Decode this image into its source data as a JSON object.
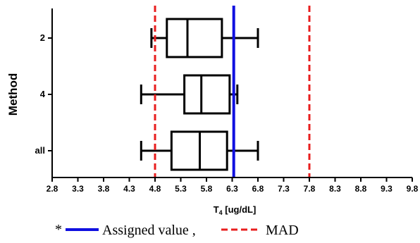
{
  "chart_data": {
    "type": "box",
    "orientation": "horizontal",
    "xlabel_main": "T",
    "xlabel_sub": "4",
    "xlabel_units": " [ug/dL]",
    "ylabel": "Method",
    "xlim": [
      2.8,
      9.8
    ],
    "x_ticks": [
      "2.8",
      "3.3",
      "3.8",
      "4.3",
      "4.8",
      "5.3",
      "5.8",
      "6.3",
      "6.8",
      "7.3",
      "7.8",
      "8.3",
      "8.8",
      "9.3",
      "9.8"
    ],
    "categories": [
      "2",
      "4",
      "all"
    ],
    "boxes": [
      {
        "name": "2",
        "min": 4.73,
        "q1": 5.03,
        "median": 5.43,
        "q3": 6.1,
        "max": 6.8
      },
      {
        "name": "4",
        "min": 4.53,
        "q1": 5.37,
        "median": 5.7,
        "q3": 6.25,
        "max": 6.4
      },
      {
        "name": "all",
        "min": 4.53,
        "q1": 5.12,
        "median": 5.67,
        "q3": 6.2,
        "max": 6.8
      }
    ],
    "reference_lines": [
      {
        "value": 6.33,
        "style": "solid",
        "color": "#1010e0"
      },
      {
        "value": 4.8,
        "style": "dashed",
        "color": "#e81e1e"
      },
      {
        "value": 7.8,
        "style": "dashed",
        "color": "#e81e1e"
      }
    ],
    "legend": {
      "prefix": "*",
      "items": [
        {
          "label": "Assigned value ,",
          "color": "#1010e0",
          "style": "solid"
        },
        {
          "label": "MAD",
          "color": "#e81e1e",
          "style": "dashed"
        }
      ]
    }
  }
}
